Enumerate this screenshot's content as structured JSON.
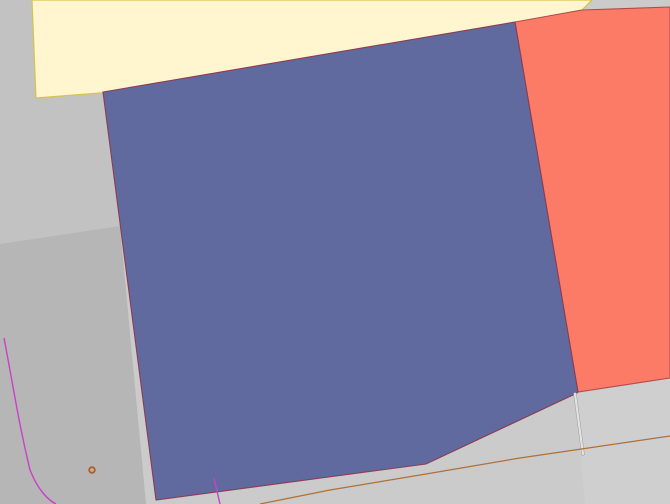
{
  "map": {
    "type": "parcel-map",
    "colors": {
      "background": "#ffffff",
      "ground_light": "#cbcbcb",
      "ground_mid": "#c2c2c2",
      "ground_dark": "#b6b6b6",
      "ground_lower_right": "#cfcfcf",
      "cream_area": "#fff6d0",
      "cream_outline": "#d7c24d",
      "blue_parcel": "#606a9f",
      "blue_outline": "#8c3c54",
      "coral_parcel": "#fb7b67",
      "coral_outline": "#b24a48",
      "brown_line": "#b07035",
      "magenta_line": "#c742c8",
      "path_line": "#e6e6e6",
      "path_line_edge": "#9a9a9a",
      "point_marker": "#b05c22"
    },
    "features": [
      {
        "id": "cream-parcel",
        "kind": "polygon",
        "fill_role": "cream_area"
      },
      {
        "id": "blue-parcel",
        "kind": "polygon",
        "fill_role": "blue_parcel"
      },
      {
        "id": "coral-parcel",
        "kind": "polygon",
        "fill_role": "coral_parcel"
      },
      {
        "id": "magenta-boundary",
        "kind": "line",
        "stroke_role": "magenta_line"
      },
      {
        "id": "brown-boundary",
        "kind": "line",
        "stroke_role": "brown_line"
      },
      {
        "id": "footpath",
        "kind": "line",
        "stroke_role": "path_line"
      },
      {
        "id": "point-marker",
        "kind": "point",
        "stroke_role": "point_marker"
      }
    ]
  }
}
